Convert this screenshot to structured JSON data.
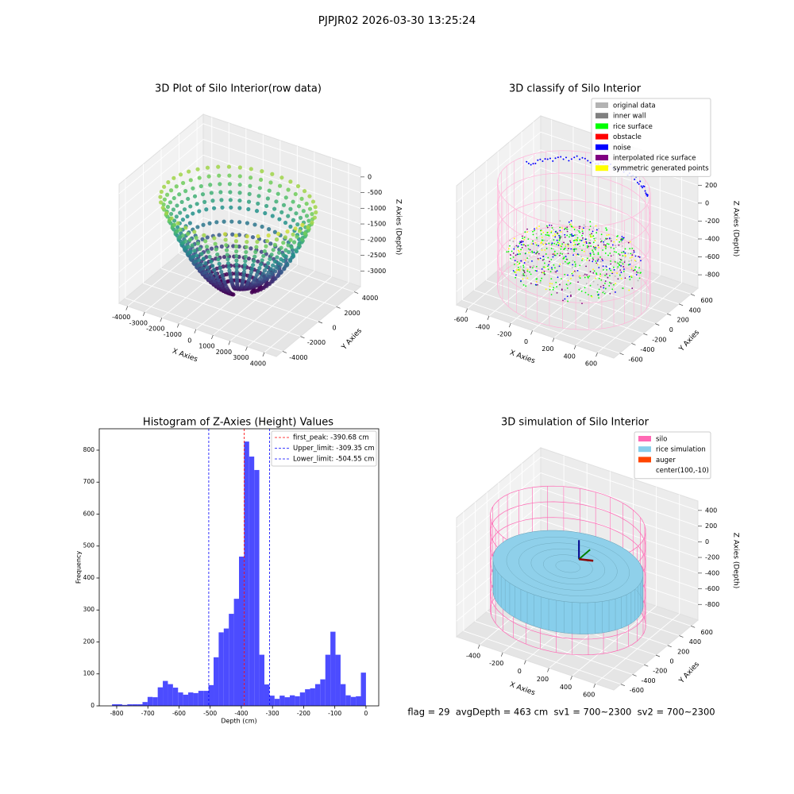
{
  "title": "PJPJR02 2026-03-30 13:25:24",
  "chart_data": [
    {
      "type": "scatter3d",
      "title": "3D Plot of Silo Interior(row data)",
      "x_label": "X Axies",
      "y_label": "Y Axies",
      "z_label": "Z Axies (Depth)",
      "xlim": [
        -4500,
        4700
      ],
      "ylim": [
        -4700,
        4700
      ],
      "zlim": [
        -3500,
        300
      ],
      "xticks": [
        -4000,
        -3000,
        -2000,
        -1000,
        0,
        1000,
        2000,
        3000,
        4000
      ],
      "yticks": [
        -4000,
        -2000,
        0,
        2000,
        4000
      ],
      "zticks": [
        0,
        -500,
        -1000,
        -1500,
        -2000,
        -2500,
        -3000
      ]
    },
    {
      "type": "classify3d",
      "title": "3D classify of Silo Interior",
      "x_label": "X Axies",
      "y_label": "Y Axies",
      "z_label": "Z Axies (Depth)",
      "xlim": [
        -700,
        750
      ],
      "ylim": [
        -700,
        720
      ],
      "zlim": [
        -950,
        380
      ],
      "xticks": [
        -600,
        -400,
        -200,
        0,
        200,
        400,
        600
      ],
      "yticks": [
        -600,
        -400,
        -200,
        0,
        200,
        400,
        600
      ],
      "zticks": [
        200,
        0,
        -200,
        -400,
        -600,
        -800
      ],
      "legend": [
        {
          "name": "original data",
          "color": "#b3b3b3"
        },
        {
          "name": "inner wall",
          "color": "#808080"
        },
        {
          "name": "rice surface",
          "color": "#00ff00"
        },
        {
          "name": "obstacle",
          "color": "#ff0000"
        },
        {
          "name": "noise",
          "color": "#0000ff"
        },
        {
          "name": "interpolated rice surface",
          "color": "#800080"
        },
        {
          "name": "symmetric generated points",
          "color": "#ffff00"
        }
      ]
    },
    {
      "type": "histogram",
      "title": "Histogram of Z-Axies (Height) Values",
      "x_label": "Depth (cm)",
      "y_label": "Frequency",
      "color": "#4c4cff",
      "bins": [
        -815,
        -798.7,
        -782.4,
        -766.1,
        -749.8,
        -733.5,
        -717.2,
        -700.9,
        -684.6,
        -668.3,
        -652,
        -635.7,
        -619.4,
        -603.1,
        -586.8,
        -570.5,
        -554.2,
        -537.9,
        -521.6,
        -505.3,
        -489,
        -472.7,
        -456.4,
        -440.1,
        -423.8,
        -407.5,
        -391.2,
        -374.9,
        -358.6,
        -342.3,
        -326,
        -309.7,
        -293.4,
        -277.1,
        -260.8,
        -244.5,
        -228.2,
        -211.9,
        -195.6,
        -179.3,
        -163,
        -146.7,
        -130.4,
        -114.1,
        -97.8,
        -81.5,
        -65.2,
        -48.9,
        -32.6,
        -16.3,
        0
      ],
      "values": [
        5,
        5,
        3,
        5,
        5,
        5,
        12,
        28,
        27,
        58,
        78,
        68,
        57,
        42,
        35,
        42,
        40,
        47,
        47,
        65,
        152,
        230,
        242,
        288,
        335,
        467,
        827,
        780,
        738,
        160,
        67,
        32,
        22,
        32,
        27,
        33,
        30,
        42,
        52,
        55,
        68,
        83,
        160,
        232,
        160,
        68,
        33,
        28,
        30,
        104
      ],
      "xlim": [
        -856,
        41
      ],
      "ylim": [
        0,
        867
      ],
      "xticks": [
        -800,
        -700,
        -600,
        -500,
        -400,
        -300,
        -200,
        -100,
        0
      ],
      "yticks": [
        0,
        100,
        200,
        300,
        400,
        500,
        600,
        700,
        800
      ],
      "lines": [
        {
          "name": "first_peak: -390.68 cm",
          "value": -390.68,
          "color": "#ff0000"
        },
        {
          "name": "Upper_limit: -309.35 cm",
          "value": -309.35,
          "color": "#0000ff"
        },
        {
          "name": "Lower_limit: -504.55 cm",
          "value": -504.55,
          "color": "#0000ff"
        }
      ]
    },
    {
      "type": "surface3d",
      "title": "3D simulation of Silo Interior",
      "x_label": "X Axies",
      "y_label": "Y Axies",
      "z_label": "Z Axies (Depth)",
      "xlim": [
        -600,
        760
      ],
      "ylim": [
        -720,
        720
      ],
      "zlim": [
        -1000,
        520
      ],
      "xticks": [
        -400,
        -200,
        0,
        200,
        400,
        600
      ],
      "yticks": [
        -600,
        -400,
        -200,
        0,
        200,
        400,
        600
      ],
      "zticks": [
        400,
        200,
        0,
        -200,
        -400,
        -600,
        -800
      ],
      "legend": [
        {
          "name": "silo",
          "color": "#ff69b4"
        },
        {
          "name": "rice simulation",
          "color": "#87ceeb"
        },
        {
          "name": "auger",
          "color": "#ff4500"
        },
        {
          "name": "center(100,-10)"
        }
      ],
      "footer": "flag = 29  avgDepth = 463 cm  sv1 = 700~2300  sv2 = 700~2300"
    }
  ]
}
